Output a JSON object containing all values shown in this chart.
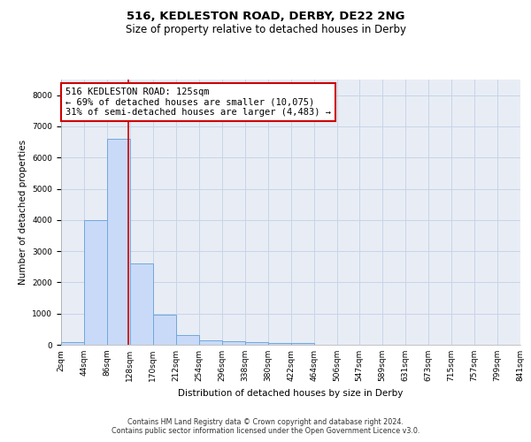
{
  "title": "516, KEDLESTON ROAD, DERBY, DE22 2NG",
  "subtitle": "Size of property relative to detached houses in Derby",
  "xlabel": "Distribution of detached houses by size in Derby",
  "ylabel": "Number of detached properties",
  "bar_edges": [
    2,
    44,
    86,
    128,
    170,
    212,
    254,
    296,
    338,
    380,
    422,
    464,
    506,
    547,
    589,
    631,
    673,
    715,
    757,
    799,
    841
  ],
  "bar_values": [
    80,
    4000,
    6600,
    2620,
    960,
    325,
    130,
    120,
    75,
    60,
    55,
    0,
    0,
    0,
    0,
    0,
    0,
    0,
    0,
    0
  ],
  "property_size": 125,
  "vline_x": 125,
  "annotation_text": "516 KEDLESTON ROAD: 125sqm\n← 69% of detached houses are smaller (10,075)\n31% of semi-detached houses are larger (4,483) →",
  "annotation_box_color": "#ffffff",
  "annotation_box_edgecolor": "#cc0000",
  "vline_color": "#cc0000",
  "bar_facecolor": "#c9daf8",
  "bar_edgecolor": "#6fa8dc",
  "grid_color": "#c9d4e8",
  "background_color": "#e8edf5",
  "ylim": [
    0,
    8500
  ],
  "yticks": [
    0,
    1000,
    2000,
    3000,
    4000,
    5000,
    6000,
    7000,
    8000
  ],
  "tick_labels": [
    "2sqm",
    "44sqm",
    "86sqm",
    "128sqm",
    "170sqm",
    "212sqm",
    "254sqm",
    "296sqm",
    "338sqm",
    "380sqm",
    "422sqm",
    "464sqm",
    "506sqm",
    "547sqm",
    "589sqm",
    "631sqm",
    "673sqm",
    "715sqm",
    "757sqm",
    "799sqm",
    "841sqm"
  ],
  "footer_text": "Contains HM Land Registry data © Crown copyright and database right 2024.\nContains public sector information licensed under the Open Government Licence v3.0.",
  "title_fontsize": 9.5,
  "subtitle_fontsize": 8.5,
  "axis_label_fontsize": 7.5,
  "tick_fontsize": 6.5,
  "annotation_fontsize": 7.5,
  "footer_fontsize": 5.8
}
